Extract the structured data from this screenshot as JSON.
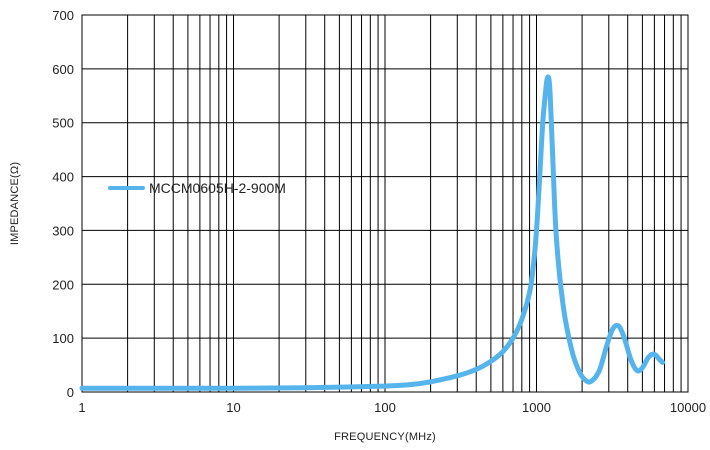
{
  "chart_data": {
    "type": "line",
    "title": "",
    "xlabel": "FREQUENCY(MHz)",
    "ylabel": "IMPEDANCE(Ω)",
    "x_scale": "log",
    "xlim": [
      1,
      10000
    ],
    "ylim": [
      0,
      700
    ],
    "x_ticks": [
      1,
      10,
      100,
      1000,
      10000
    ],
    "x_tick_labels": [
      "1",
      "10",
      "100",
      "1000",
      "10000"
    ],
    "y_ticks": [
      0,
      100,
      200,
      300,
      400,
      500,
      600,
      700
    ],
    "y_tick_labels": [
      "0",
      "100",
      "200",
      "300",
      "400",
      "500",
      "600",
      "700"
    ],
    "grid": true,
    "legend_position": "middle-left",
    "series": [
      {
        "name": "MCCM0605H-2-900M",
        "color": "#56b4ec",
        "points": [
          [
            1,
            7
          ],
          [
            10,
            7
          ],
          [
            30,
            8
          ],
          [
            50,
            9
          ],
          [
            100,
            11
          ],
          [
            150,
            14
          ],
          [
            200,
            19
          ],
          [
            300,
            30
          ],
          [
            400,
            42
          ],
          [
            500,
            57
          ],
          [
            600,
            75
          ],
          [
            700,
            100
          ],
          [
            800,
            135
          ],
          [
            900,
            185
          ],
          [
            950,
            230
          ],
          [
            1000,
            300
          ],
          [
            1050,
            400
          ],
          [
            1100,
            500
          ],
          [
            1150,
            560
          ],
          [
            1180,
            583
          ],
          [
            1220,
            570
          ],
          [
            1270,
            460
          ],
          [
            1350,
            290
          ],
          [
            1500,
            160
          ],
          [
            1700,
            80
          ],
          [
            1900,
            40
          ],
          [
            2100,
            22
          ],
          [
            2300,
            20
          ],
          [
            2600,
            40
          ],
          [
            2900,
            85
          ],
          [
            3200,
            118
          ],
          [
            3500,
            122
          ],
          [
            3800,
            100
          ],
          [
            4200,
            60
          ],
          [
            4600,
            40
          ],
          [
            5000,
            45
          ],
          [
            5500,
            65
          ],
          [
            6000,
            70
          ],
          [
            6500,
            60
          ],
          [
            6800,
            55
          ]
        ]
      }
    ]
  }
}
